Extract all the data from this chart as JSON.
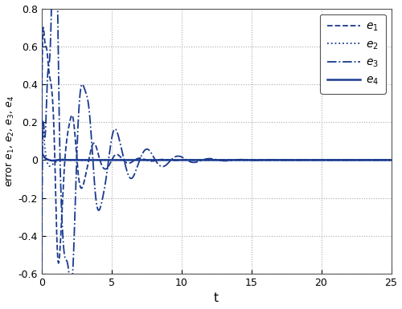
{
  "xlabel": "t",
  "ylabel": "error e$_1$, e$_2$, e$_3$, e$_4$",
  "xlim": [
    0,
    25
  ],
  "ylim": [
    -0.6,
    0.8
  ],
  "yticks": [
    -0.6,
    -0.4,
    -0.2,
    0.0,
    0.2,
    0.4,
    0.6,
    0.8
  ],
  "ytick_labels": [
    "-0.6",
    "-0.4",
    "-0.2",
    "0",
    "0.2",
    "0.4",
    "0.6",
    "0.8"
  ],
  "xticks": [
    0,
    5,
    10,
    15,
    20,
    25
  ],
  "grid_color": "#aaaaaa",
  "line_color": "#1a3a8f",
  "bg_color": "#ffffff",
  "fig_bg": "#ffffff",
  "border_color": "#555555"
}
